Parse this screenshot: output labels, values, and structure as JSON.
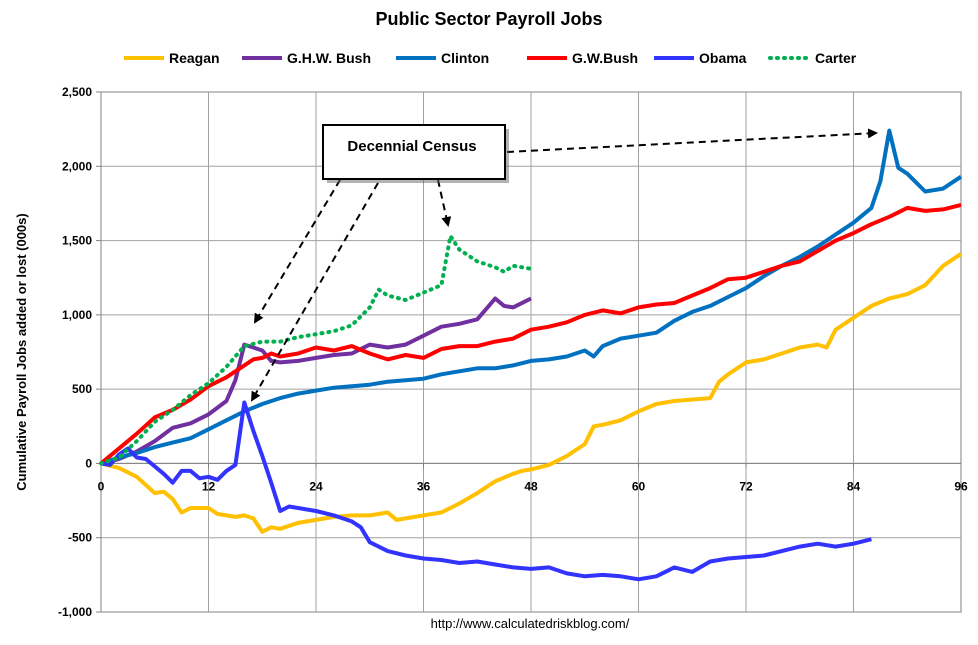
{
  "chart_data": {
    "type": "line",
    "title": "Public Sector Payroll Jobs",
    "xlabel": "",
    "ylabel": "Cumulative Payroll Jobs added or lost (000s)",
    "xlim": [
      0,
      96
    ],
    "ylim": [
      -1000,
      2500
    ],
    "x_ticks": [
      0,
      12,
      24,
      36,
      48,
      60,
      72,
      84,
      96
    ],
    "y_ticks": [
      -1000,
      -500,
      0,
      500,
      1000,
      1500,
      2000,
      2500
    ],
    "y_tick_labels": [
      "-1,000",
      "-500",
      "0",
      "500",
      "1,000",
      "1,500",
      "2,000",
      "2,500"
    ],
    "grid": true,
    "legend_position": "top",
    "source": "http://www.calculatedriskblog.com/",
    "annotation": "Decennial Census",
    "series": [
      {
        "name": "Reagan",
        "color": "#FFC000",
        "dash": "solid",
        "points": [
          [
            0,
            0
          ],
          [
            2,
            -30
          ],
          [
            4,
            -90
          ],
          [
            6,
            -200
          ],
          [
            7,
            -190
          ],
          [
            8,
            -240
          ],
          [
            9,
            -330
          ],
          [
            10,
            -300
          ],
          [
            12,
            -300
          ],
          [
            13,
            -340
          ],
          [
            14,
            -350
          ],
          [
            15,
            -360
          ],
          [
            16,
            -350
          ],
          [
            17,
            -370
          ],
          [
            18,
            -460
          ],
          [
            19,
            -430
          ],
          [
            20,
            -440
          ],
          [
            22,
            -400
          ],
          [
            24,
            -380
          ],
          [
            26,
            -360
          ],
          [
            28,
            -350
          ],
          [
            30,
            -350
          ],
          [
            32,
            -330
          ],
          [
            33,
            -380
          ],
          [
            34,
            -370
          ],
          [
            36,
            -350
          ],
          [
            38,
            -330
          ],
          [
            40,
            -270
          ],
          [
            42,
            -200
          ],
          [
            44,
            -120
          ],
          [
            46,
            -70
          ],
          [
            47,
            -50
          ],
          [
            48,
            -40
          ],
          [
            50,
            -10
          ],
          [
            52,
            50
          ],
          [
            54,
            130
          ],
          [
            55,
            250
          ],
          [
            56,
            260
          ],
          [
            58,
            290
          ],
          [
            60,
            350
          ],
          [
            62,
            400
          ],
          [
            64,
            420
          ],
          [
            66,
            430
          ],
          [
            68,
            440
          ],
          [
            69,
            550
          ],
          [
            70,
            600
          ],
          [
            72,
            680
          ],
          [
            74,
            700
          ],
          [
            76,
            740
          ],
          [
            78,
            780
          ],
          [
            80,
            800
          ],
          [
            81,
            780
          ],
          [
            82,
            900
          ],
          [
            84,
            980
          ],
          [
            86,
            1060
          ],
          [
            88,
            1110
          ],
          [
            90,
            1140
          ],
          [
            92,
            1200
          ],
          [
            94,
            1330
          ],
          [
            96,
            1410
          ]
        ]
      },
      {
        "name": "G.H.W. Bush",
        "color": "#7030A0",
        "dash": "solid",
        "points": [
          [
            0,
            0
          ],
          [
            2,
            30
          ],
          [
            4,
            80
          ],
          [
            6,
            150
          ],
          [
            8,
            240
          ],
          [
            10,
            270
          ],
          [
            12,
            330
          ],
          [
            14,
            420
          ],
          [
            15,
            560
          ],
          [
            16,
            800
          ],
          [
            17,
            780
          ],
          [
            18,
            760
          ],
          [
            19,
            690
          ],
          [
            20,
            680
          ],
          [
            22,
            690
          ],
          [
            24,
            710
          ],
          [
            26,
            730
          ],
          [
            28,
            740
          ],
          [
            30,
            800
          ],
          [
            32,
            780
          ],
          [
            34,
            800
          ],
          [
            36,
            860
          ],
          [
            38,
            920
          ],
          [
            40,
            940
          ],
          [
            42,
            970
          ],
          [
            44,
            1110
          ],
          [
            45,
            1060
          ],
          [
            46,
            1050
          ],
          [
            48,
            1110
          ]
        ]
      },
      {
        "name": "Clinton",
        "color": "#0070C0",
        "dash": "solid",
        "points": [
          [
            0,
            0
          ],
          [
            2,
            40
          ],
          [
            4,
            70
          ],
          [
            6,
            110
          ],
          [
            8,
            140
          ],
          [
            10,
            170
          ],
          [
            12,
            230
          ],
          [
            14,
            290
          ],
          [
            16,
            350
          ],
          [
            18,
            400
          ],
          [
            20,
            440
          ],
          [
            22,
            470
          ],
          [
            24,
            490
          ],
          [
            26,
            510
          ],
          [
            28,
            520
          ],
          [
            30,
            530
          ],
          [
            32,
            550
          ],
          [
            34,
            560
          ],
          [
            36,
            570
          ],
          [
            38,
            600
          ],
          [
            40,
            620
          ],
          [
            42,
            640
          ],
          [
            44,
            640
          ],
          [
            46,
            660
          ],
          [
            48,
            690
          ],
          [
            50,
            700
          ],
          [
            52,
            720
          ],
          [
            54,
            760
          ],
          [
            55,
            720
          ],
          [
            56,
            790
          ],
          [
            58,
            840
          ],
          [
            60,
            860
          ],
          [
            62,
            880
          ],
          [
            64,
            960
          ],
          [
            66,
            1020
          ],
          [
            68,
            1060
          ],
          [
            70,
            1120
          ],
          [
            72,
            1180
          ],
          [
            74,
            1260
          ],
          [
            76,
            1330
          ],
          [
            78,
            1390
          ],
          [
            80,
            1460
          ],
          [
            82,
            1540
          ],
          [
            84,
            1620
          ],
          [
            86,
            1720
          ],
          [
            87,
            1900
          ],
          [
            88,
            2240
          ],
          [
            89,
            1990
          ],
          [
            90,
            1950
          ],
          [
            92,
            1830
          ],
          [
            94,
            1850
          ],
          [
            96,
            1930
          ]
        ]
      },
      {
        "name": "G.W.Bush",
        "color": "#FF0000",
        "dash": "solid",
        "points": [
          [
            0,
            0
          ],
          [
            2,
            100
          ],
          [
            4,
            200
          ],
          [
            6,
            310
          ],
          [
            8,
            360
          ],
          [
            10,
            430
          ],
          [
            12,
            520
          ],
          [
            14,
            580
          ],
          [
            16,
            660
          ],
          [
            17,
            700
          ],
          [
            18,
            710
          ],
          [
            19,
            740
          ],
          [
            20,
            720
          ],
          [
            22,
            740
          ],
          [
            24,
            780
          ],
          [
            26,
            760
          ],
          [
            28,
            790
          ],
          [
            30,
            740
          ],
          [
            32,
            700
          ],
          [
            34,
            730
          ],
          [
            36,
            710
          ],
          [
            38,
            770
          ],
          [
            40,
            790
          ],
          [
            42,
            790
          ],
          [
            44,
            820
          ],
          [
            46,
            840
          ],
          [
            48,
            900
          ],
          [
            50,
            920
          ],
          [
            52,
            950
          ],
          [
            54,
            1000
          ],
          [
            56,
            1030
          ],
          [
            58,
            1010
          ],
          [
            60,
            1050
          ],
          [
            62,
            1070
          ],
          [
            64,
            1080
          ],
          [
            66,
            1130
          ],
          [
            68,
            1180
          ],
          [
            70,
            1240
          ],
          [
            72,
            1250
          ],
          [
            74,
            1290
          ],
          [
            76,
            1330
          ],
          [
            78,
            1360
          ],
          [
            80,
            1430
          ],
          [
            82,
            1500
          ],
          [
            84,
            1550
          ],
          [
            86,
            1610
          ],
          [
            88,
            1660
          ],
          [
            90,
            1720
          ],
          [
            92,
            1700
          ],
          [
            94,
            1710
          ],
          [
            96,
            1740
          ]
        ]
      },
      {
        "name": "Obama",
        "color": "#3333FF",
        "dash": "solid",
        "points": [
          [
            0,
            0
          ],
          [
            1,
            -10
          ],
          [
            2,
            60
          ],
          [
            3,
            100
          ],
          [
            4,
            40
          ],
          [
            5,
            30
          ],
          [
            6,
            -20
          ],
          [
            7,
            -70
          ],
          [
            8,
            -130
          ],
          [
            9,
            -50
          ],
          [
            10,
            -50
          ],
          [
            11,
            -100
          ],
          [
            12,
            -90
          ],
          [
            13,
            -110
          ],
          [
            14,
            -50
          ],
          [
            15,
            -10
          ],
          [
            16,
            410
          ],
          [
            17,
            220
          ],
          [
            18,
            50
          ],
          [
            19,
            -130
          ],
          [
            20,
            -320
          ],
          [
            21,
            -290
          ],
          [
            22,
            -300
          ],
          [
            24,
            -320
          ],
          [
            26,
            -350
          ],
          [
            28,
            -390
          ],
          [
            29,
            -430
          ],
          [
            30,
            -530
          ],
          [
            32,
            -590
          ],
          [
            34,
            -620
          ],
          [
            36,
            -640
          ],
          [
            38,
            -650
          ],
          [
            40,
            -670
          ],
          [
            42,
            -660
          ],
          [
            44,
            -680
          ],
          [
            46,
            -700
          ],
          [
            48,
            -710
          ],
          [
            50,
            -700
          ],
          [
            52,
            -740
          ],
          [
            54,
            -760
          ],
          [
            56,
            -750
          ],
          [
            58,
            -760
          ],
          [
            60,
            -780
          ],
          [
            62,
            -760
          ],
          [
            64,
            -700
          ],
          [
            66,
            -730
          ],
          [
            68,
            -660
          ],
          [
            70,
            -640
          ],
          [
            72,
            -630
          ],
          [
            74,
            -620
          ],
          [
            76,
            -590
          ],
          [
            78,
            -560
          ],
          [
            80,
            -540
          ],
          [
            82,
            -560
          ],
          [
            84,
            -540
          ],
          [
            86,
            -510
          ]
        ]
      },
      {
        "name": "Carter",
        "color": "#00B050",
        "dash": "dotted",
        "points": [
          [
            0,
            0
          ],
          [
            2,
            40
          ],
          [
            4,
            150
          ],
          [
            6,
            280
          ],
          [
            8,
            360
          ],
          [
            10,
            460
          ],
          [
            12,
            540
          ],
          [
            14,
            650
          ],
          [
            16,
            790
          ],
          [
            18,
            820
          ],
          [
            20,
            820
          ],
          [
            22,
            850
          ],
          [
            24,
            870
          ],
          [
            26,
            890
          ],
          [
            28,
            930
          ],
          [
            30,
            1050
          ],
          [
            31,
            1170
          ],
          [
            32,
            1130
          ],
          [
            34,
            1100
          ],
          [
            36,
            1150
          ],
          [
            38,
            1200
          ],
          [
            39,
            1530
          ],
          [
            40,
            1440
          ],
          [
            42,
            1360
          ],
          [
            44,
            1320
          ],
          [
            45,
            1290
          ],
          [
            46,
            1330
          ],
          [
            48,
            1310
          ]
        ]
      }
    ]
  }
}
